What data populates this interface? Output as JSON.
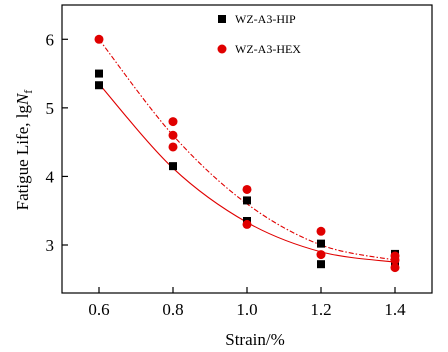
{
  "chart_data": {
    "type": "scatter",
    "xlabel": "Strain/%",
    "ylabel": {
      "prefix": "Fatigue Life, lg",
      "var": "N",
      "sub": "f"
    },
    "xlim": [
      0.5,
      1.5
    ],
    "ylim": [
      2.3,
      6.5
    ],
    "xticks": [
      "0.6",
      "0.8",
      "1.0",
      "1.2",
      "1.4"
    ],
    "yticks": [
      "3",
      "4",
      "5",
      "6"
    ],
    "legend_position": "top-center",
    "series": [
      {
        "name": "WZ-A3-HIP",
        "marker": "square",
        "color": "#000000",
        "points": [
          [
            0.6,
            5.5
          ],
          [
            0.6,
            5.33
          ],
          [
            0.8,
            4.15
          ],
          [
            1.0,
            3.65
          ],
          [
            1.0,
            3.35
          ],
          [
            1.2,
            3.02
          ],
          [
            1.2,
            2.72
          ],
          [
            1.4,
            2.87
          ],
          [
            1.4,
            2.78
          ],
          [
            1.4,
            2.72
          ]
        ],
        "fit": {
          "style": "solid",
          "color": "#e00000",
          "points": [
            [
              0.6,
              5.35
            ],
            [
              0.8,
              4.12
            ],
            [
              1.0,
              3.33
            ],
            [
              1.2,
              2.9
            ],
            [
              1.4,
              2.75
            ]
          ]
        }
      },
      {
        "name": "WZ-A3-HEX",
        "marker": "circle",
        "color": "#e00000",
        "points": [
          [
            0.6,
            6.0
          ],
          [
            0.8,
            4.8
          ],
          [
            0.8,
            4.6
          ],
          [
            0.8,
            4.43
          ],
          [
            1.0,
            3.81
          ],
          [
            1.0,
            3.3
          ],
          [
            1.2,
            3.2
          ],
          [
            1.2,
            2.86
          ],
          [
            1.4,
            2.84
          ],
          [
            1.4,
            2.78
          ],
          [
            1.4,
            2.67
          ]
        ],
        "fit": {
          "style": "dash-dot",
          "color": "#e00000",
          "points": [
            [
              0.6,
              6.0
            ],
            [
              0.8,
              4.6
            ],
            [
              1.0,
              3.6
            ],
            [
              1.2,
              3.0
            ],
            [
              1.4,
              2.78
            ]
          ]
        }
      }
    ]
  }
}
